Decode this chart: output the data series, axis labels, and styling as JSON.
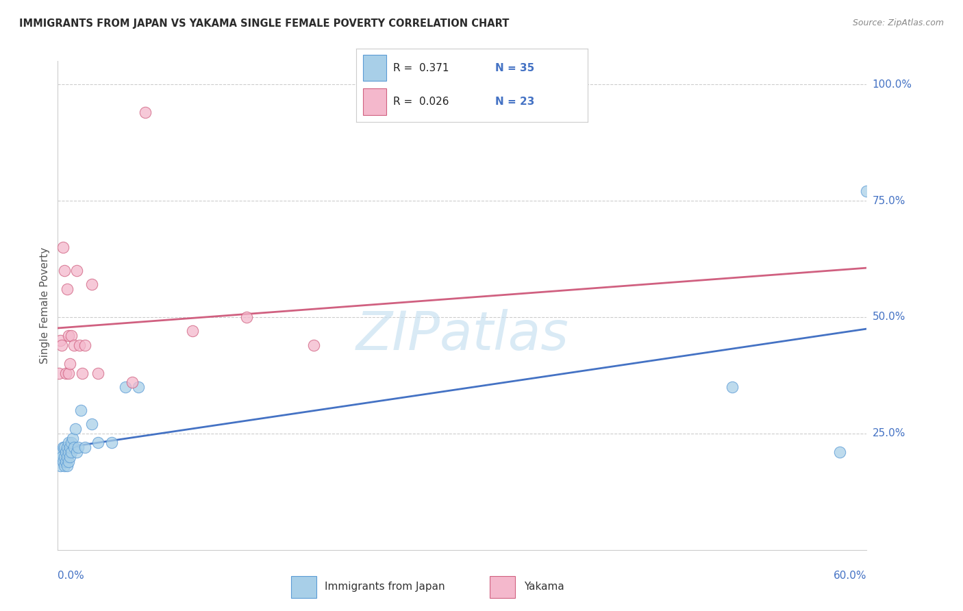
{
  "title": "IMMIGRANTS FROM JAPAN VS YAKAMA SINGLE FEMALE POVERTY CORRELATION CHART",
  "source": "Source: ZipAtlas.com",
  "ylabel": "Single Female Poverty",
  "legend_label1": "Immigrants from Japan",
  "legend_label2": "Yakama",
  "r1": 0.371,
  "n1": 35,
  "r2": 0.026,
  "n2": 23,
  "color_blue_fill": "#a8cfe8",
  "color_blue_edge": "#5b9bd5",
  "color_blue_line": "#4472c4",
  "color_pink_fill": "#f4b8cc",
  "color_pink_edge": "#d06080",
  "color_pink_line": "#d06080",
  "tick_color": "#4472c4",
  "watermark": "ZIPatlas",
  "watermark_color": "#c5dff0",
  "ytick_labels": [
    "25.0%",
    "50.0%",
    "75.0%",
    "100.0%"
  ],
  "ytick_values": [
    0.25,
    0.5,
    0.75,
    1.0
  ],
  "xtick_left_label": "0.0%",
  "xtick_right_label": "60.0%",
  "xmax": 0.6,
  "ymin": 0.0,
  "ymax": 1.05,
  "blue_x": [
    0.001,
    0.002,
    0.003,
    0.004,
    0.004,
    0.005,
    0.005,
    0.005,
    0.006,
    0.006,
    0.007,
    0.007,
    0.007,
    0.008,
    0.008,
    0.008,
    0.009,
    0.009,
    0.01,
    0.01,
    0.011,
    0.012,
    0.013,
    0.014,
    0.015,
    0.017,
    0.02,
    0.025,
    0.03,
    0.04,
    0.05,
    0.06,
    0.5,
    0.58,
    0.6
  ],
  "blue_y": [
    0.21,
    0.18,
    0.2,
    0.19,
    0.22,
    0.18,
    0.2,
    0.22,
    0.19,
    0.21,
    0.18,
    0.2,
    0.22,
    0.19,
    0.21,
    0.23,
    0.2,
    0.22,
    0.21,
    0.23,
    0.24,
    0.22,
    0.26,
    0.21,
    0.22,
    0.3,
    0.22,
    0.27,
    0.23,
    0.23,
    0.35,
    0.35,
    0.35,
    0.21,
    0.77
  ],
  "pink_x": [
    0.001,
    0.002,
    0.003,
    0.004,
    0.005,
    0.006,
    0.007,
    0.008,
    0.008,
    0.009,
    0.01,
    0.012,
    0.014,
    0.016,
    0.018,
    0.02,
    0.025,
    0.03,
    0.055,
    0.065,
    0.1,
    0.14,
    0.19
  ],
  "pink_y": [
    0.38,
    0.45,
    0.44,
    0.65,
    0.6,
    0.38,
    0.56,
    0.38,
    0.46,
    0.4,
    0.46,
    0.44,
    0.6,
    0.44,
    0.38,
    0.44,
    0.57,
    0.38,
    0.36,
    0.94,
    0.47,
    0.5,
    0.44
  ]
}
